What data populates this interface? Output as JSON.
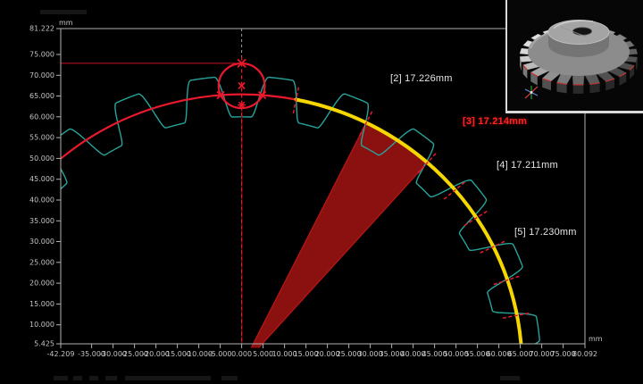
{
  "colors": {
    "red": "#e8192c",
    "yellow": "#f5d600",
    "teal": "#27a39a",
    "selected_label": "#ff2222",
    "wedge_fill": "#8b1111",
    "wedge_edge": "#b51515",
    "axis_line": "#b2b2b2",
    "tick_label": "#c4c4c4",
    "label_text": "#e4e4e4",
    "inset_border": "#d9d9d9"
  },
  "chart_data": {
    "type": "line",
    "description": "Gear tooth profile measurement plot with measuring circle and pitch-circle arc",
    "grid": false,
    "x_axis": {
      "unit": "mm",
      "min": -42.209,
      "max": 80.092,
      "tick_values": [
        -42.209,
        -35,
        -30,
        -25,
        -20,
        -15,
        -10,
        -5,
        0,
        5,
        10,
        15,
        20,
        25,
        30,
        35,
        40,
        45,
        50,
        55,
        60,
        65,
        70,
        75,
        80.092
      ],
      "tick_labels": [
        "-42.209",
        "-35.000",
        "-30.000",
        "-25.000",
        "-20.000",
        "-15.000",
        "-10.000",
        "-5.000",
        "0.000",
        "5.000",
        "10.000",
        "15.000",
        "20.000",
        "25.000",
        "30.000",
        "35.000",
        "40.000",
        "45.000",
        "50.000",
        "55.000",
        "60.000",
        "65.000",
        "70.000",
        "75.000",
        "80.092"
      ]
    },
    "y_axis": {
      "unit": "mm",
      "min": 5.425,
      "max": 81.222,
      "tick_values": [
        81.222,
        75,
        70,
        65,
        60,
        55,
        50,
        45,
        40,
        35,
        30,
        25,
        20,
        15,
        10,
        5.425
      ],
      "tick_labels": [
        "81.222",
        "75.000",
        "70.000",
        "65.000",
        "60.000",
        "55.000",
        "50.000",
        "45.000",
        "40.000",
        "35.000",
        "30.000",
        "25.000",
        "20.000",
        "15.000",
        "10.000",
        "5.425"
      ]
    },
    "gear_profile": {
      "center_mm": [
        0,
        0
      ],
      "tooth_count": 24,
      "pitch_deg": 15,
      "gap_center_deg": 90,
      "tip_radius_mm": 69.8,
      "root_radius_mm": 60.0,
      "root_half_deg": 2.1,
      "tip_start_half_deg": 5.2,
      "visible_span_deg": [
        -4,
        142
      ]
    },
    "pitch_arc": {
      "radius_mm": 65.4,
      "red_span_deg": [
        78.8,
        131.0
      ],
      "yellow_span_deg": [
        4.77,
        78.8
      ]
    },
    "pin_circle": {
      "center_mm": [
        0,
        67.49
      ],
      "radius_mm": 5.37,
      "markers_deg_on_arc": [
        94.3,
        85.8
      ],
      "top_marker_mm": [
        0,
        72.86
      ],
      "star_marker_mm": [
        0,
        62.87
      ]
    },
    "sector": {
      "span_deg": [
        48.5,
        63.6
      ],
      "radius_mm": 65.4
    },
    "flank_ticks_deg": [
      78.8,
      63.6,
      48.5,
      40.4,
      33.1,
      26.1,
      18.5,
      10.8
    ],
    "reference_line_y_mm": 72.86,
    "measurements": [
      {
        "id": "[2]",
        "value": "17.226mm",
        "text": "[2] 17.226mm",
        "selected": false
      },
      {
        "id": "[3]",
        "value": "17.214mm",
        "text": "[3] 17.214mm",
        "selected": true
      },
      {
        "id": "[4]",
        "value": "17.211mm",
        "text": "[4] 17.211mm",
        "selected": false
      },
      {
        "id": "[5]",
        "value": "17.230mm",
        "text": "[5] 17.230mm",
        "selected": false
      }
    ]
  },
  "inset": {
    "content": "3D photo of measured helical gear with hub",
    "tooth_count": 22,
    "has_axis_cross": true
  }
}
